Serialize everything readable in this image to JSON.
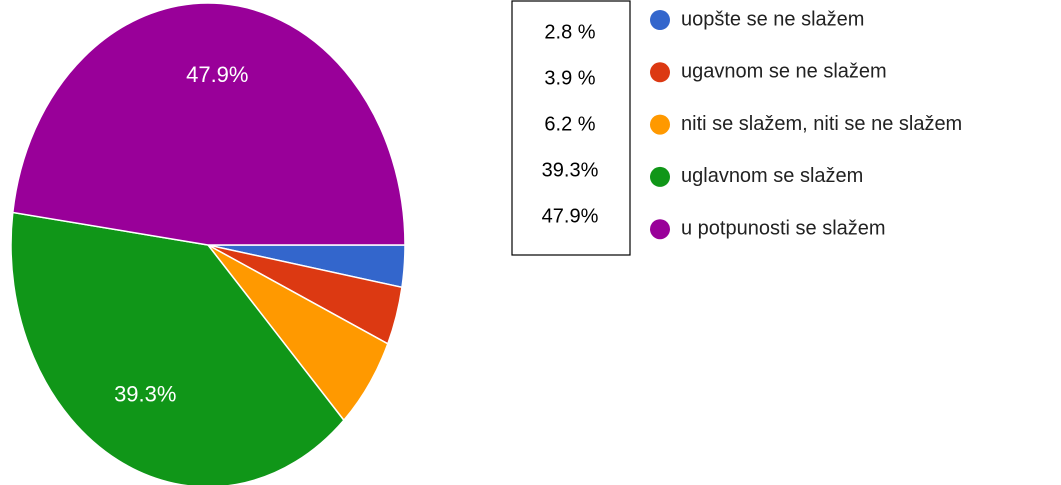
{
  "chart_data": {
    "type": "pie",
    "categories": [
      "uopšte se ne slažem",
      "ugavnom se ne slažem",
      "niti se slažem, niti se ne slažem",
      "uglavnom se slažem",
      "u potpunosti se slažem"
    ],
    "values": [
      2.8,
      3.9,
      6.2,
      39.3,
      47.9
    ],
    "value_labels": [
      "2.8 %",
      "3.9 %",
      "6.2 %",
      "39.3%",
      "47.9%"
    ],
    "colors": [
      "#3366cc",
      "#dc3912",
      "#ff9900",
      "#109618",
      "#990099"
    ]
  }
}
